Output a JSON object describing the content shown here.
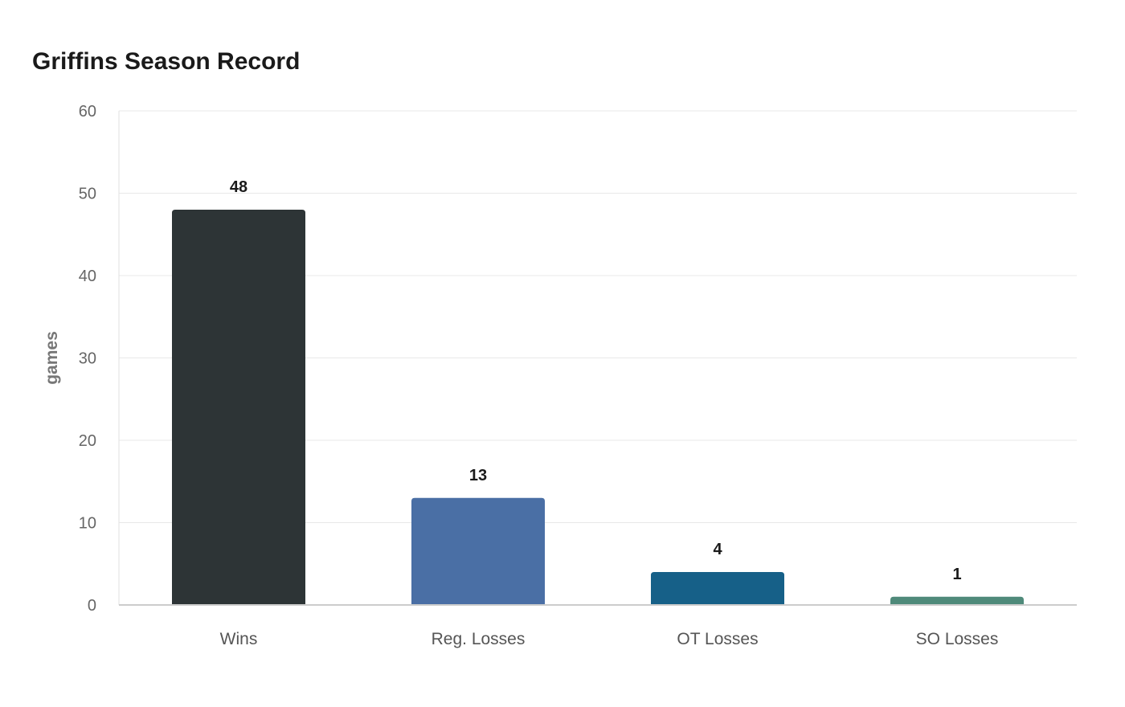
{
  "chart_data": {
    "type": "bar",
    "title": "Griffins Season Record",
    "xlabel": "",
    "ylabel": "games",
    "categories": [
      "Wins",
      "Reg. Losses",
      "OT Losses",
      "SO Losses"
    ],
    "values": [
      48,
      13,
      4,
      1
    ],
    "colors": [
      "#2d3436",
      "#4a6fa5",
      "#166088",
      "#4f8a7a"
    ],
    "ylim": [
      0,
      60
    ],
    "yticks": [
      0,
      10,
      20,
      30,
      40,
      50,
      60
    ],
    "grid": true,
    "data_labels": true
  }
}
